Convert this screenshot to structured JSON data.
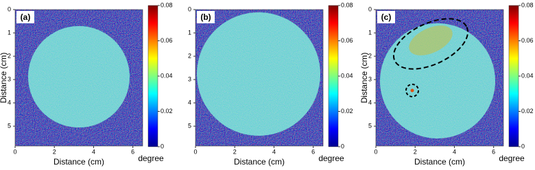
{
  "chart_data": [
    {
      "type": "heatmap",
      "panel_label": "(a)",
      "xlabel": "Distance (cm)",
      "ylabel": "Distance (cm)",
      "xlim": [
        0,
        6.5
      ],
      "xticks": [
        0,
        2,
        4,
        6
      ],
      "ylim": [
        0,
        5.85
      ],
      "yticks": [
        0,
        1,
        2,
        3,
        4,
        5
      ],
      "colorbar_label": "degree",
      "clim": [
        0,
        0.08
      ],
      "cticks": [
        0,
        0.02,
        0.04,
        0.06,
        0.08
      ]
    },
    {
      "type": "heatmap",
      "panel_label": "(b)",
      "xlabel": "Distance (cm)",
      "xlim": [
        0,
        6.5
      ],
      "xticks": [
        0,
        2,
        4,
        6
      ],
      "ylim": [
        0,
        5.85
      ],
      "yticks": [
        0,
        1,
        2,
        3,
        4,
        5
      ],
      "colorbar_label": "degree",
      "clim": [
        0,
        0.08
      ],
      "cticks": [
        0,
        0.02,
        0.04,
        0.06,
        0.08
      ]
    },
    {
      "type": "heatmap",
      "panel_label": "(c)",
      "xlabel": "Distance (cm)",
      "ylabel": "Distance (cm)",
      "xlim": [
        0,
        6.5
      ],
      "xticks": [
        0,
        2,
        4,
        6
      ],
      "ylim": [
        0,
        5.85
      ],
      "yticks": [
        0,
        1,
        2,
        3,
        4,
        5
      ],
      "colorbar_label": "degree",
      "clim": [
        0,
        0.08
      ],
      "cticks": [
        0,
        0.02,
        0.04,
        0.06,
        0.08
      ]
    }
  ]
}
